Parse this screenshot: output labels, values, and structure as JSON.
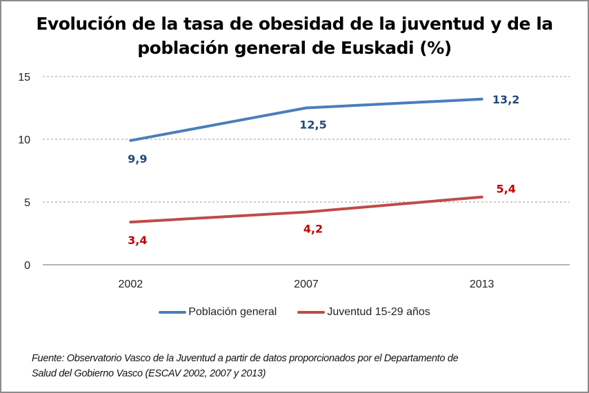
{
  "chart_data": {
    "type": "line",
    "title": "Evolución de la tasa de obesidad de la juventud y de la población general de Euskadi (%)",
    "title_lines": [
      "Evolución de la tasa de obesidad de la juventud y de la",
      "población general de Euskadi (%)"
    ],
    "categories": [
      "2002",
      "2007",
      "2013"
    ],
    "series": [
      {
        "name": "Población general",
        "color": "#4a7ebb",
        "label_color": "#1f497d",
        "values": [
          9.9,
          12.5,
          13.2
        ],
        "labels": [
          "9,9",
          "12,5",
          "13,2"
        ]
      },
      {
        "name": "Juventud 15-29 años",
        "color": "#be4b48",
        "label_color": "#c00000",
        "values": [
          3.4,
          4.2,
          5.4
        ],
        "labels": [
          "3,4",
          "4,2",
          "5,4"
        ]
      }
    ],
    "xlabel": "",
    "ylabel": "",
    "ylim": [
      0,
      15
    ],
    "yticks": [
      "0",
      "5",
      "10",
      "15"
    ],
    "ytick_values": [
      0,
      5,
      10,
      15
    ],
    "grid": true,
    "legend_position": "bottom"
  },
  "source": {
    "line1": "Fuente: Observatorio Vasco de la Juventud a partir de datos proporcionados por el Departamento de",
    "line2": "Salud del Gobierno Vasco (ESCAV 2002, 2007 y 2013)"
  }
}
